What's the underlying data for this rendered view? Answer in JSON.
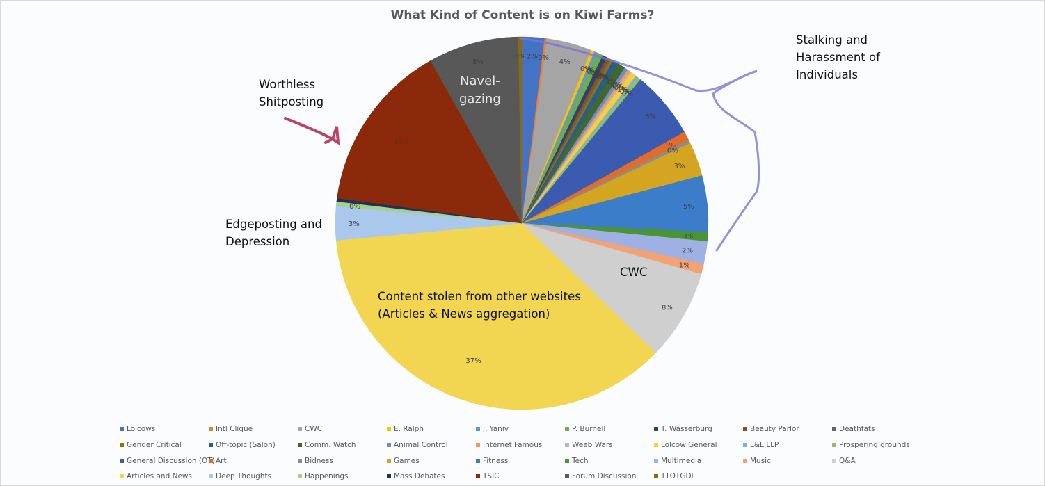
{
  "chart_data": {
    "type": "pie",
    "title": "What Kind of Content is on Kiwi Farms?",
    "legend_position": "bottom",
    "slices": [
      {
        "name": "Lolcows",
        "value": 2,
        "label": "2%",
        "color": "#4472c4"
      },
      {
        "name": "Intl Clique",
        "value": 0.2,
        "label": "0%",
        "color": "#ed7d31"
      },
      {
        "name": "CWC",
        "value": 4,
        "label": "4%",
        "color": "#a5a5a5"
      },
      {
        "name": "E. Ralph",
        "value": 0.3,
        "label": "0%",
        "color": "#ffc000"
      },
      {
        "name": "J. Yaniv",
        "value": 0.3,
        "label": "0%",
        "color": "#5b9bd5"
      },
      {
        "name": "P. Burnell",
        "value": 0.5,
        "label": "0%",
        "color": "#70ad47"
      },
      {
        "name": "T. Wasserburg",
        "value": 0.4,
        "label": "0%",
        "color": "#264478"
      },
      {
        "name": "Beauty Parlor",
        "value": 0.2,
        "label": "0%",
        "color": "#9e480e"
      },
      {
        "name": "Deathfats",
        "value": 0.2,
        "label": "0%",
        "color": "#636363"
      },
      {
        "name": "Gender Critical",
        "value": 0.2,
        "label": "0%",
        "color": "#997300"
      },
      {
        "name": "Off-topic (Salon)",
        "value": 0.5,
        "label": "1%",
        "color": "#255e91"
      },
      {
        "name": "Comm. Watch",
        "value": 0.7,
        "label": "1%",
        "color": "#43682b"
      },
      {
        "name": "Animal Control",
        "value": 0.3,
        "label": "0%",
        "color": "#698ed0"
      },
      {
        "name": "Internet Famous",
        "value": 0.2,
        "label": "0%",
        "color": "#f1975a"
      },
      {
        "name": "Weeb Wars",
        "value": 0.2,
        "label": "0%",
        "color": "#b7b7b7"
      },
      {
        "name": "Lolcow General",
        "value": 0.5,
        "label": "1%",
        "color": "#ffcd33"
      },
      {
        "name": "L&L LLP",
        "value": 0.2,
        "label": "0%",
        "color": "#7cafdd"
      },
      {
        "name": "Prospering grounds",
        "value": 0.3,
        "label": "0%",
        "color": "#8cc168"
      },
      {
        "name": "General Discussion (OT)",
        "value": 6,
        "label": "6%",
        "color": "#3a5bb0"
      },
      {
        "name": "Art",
        "value": 0.8,
        "label": "1%",
        "color": "#e36c2a"
      },
      {
        "name": "Bidness",
        "value": 0.3,
        "label": "0%",
        "color": "#8c8c8c"
      },
      {
        "name": "Games",
        "value": 3,
        "label": "3%",
        "color": "#d4a520"
      },
      {
        "name": "Fitness",
        "value": 5,
        "label": "5%",
        "color": "#3c7dc9"
      },
      {
        "name": "Tech",
        "value": 0.8,
        "label": "1%",
        "color": "#4b9434"
      },
      {
        "name": "Multimedia",
        "value": 2,
        "label": "2%",
        "color": "#9fb0e4"
      },
      {
        "name": "Music",
        "value": 0.9,
        "label": "1%",
        "color": "#f2a273"
      },
      {
        "name": "Q&A",
        "value": 8,
        "label": "8%",
        "color": "#cfcfcf"
      },
      {
        "name": "Articles and News",
        "value": 37,
        "label": "37%",
        "color": "#f2d652"
      },
      {
        "name": "Deep Thoughts",
        "value": 3,
        "label": "3%",
        "color": "#a9c8eb"
      },
      {
        "name": "Happenings",
        "value": 0.4,
        "label": "0%",
        "color": "#a6d18a"
      },
      {
        "name": "Mass Debates",
        "value": 0.3,
        "label": "0%",
        "color": "#1f2f5c"
      },
      {
        "name": "TSIC",
        "value": 15,
        "label": "15%",
        "color": "#8b2a0a"
      },
      {
        "name": "Forum Discussion",
        "value": 8,
        "label": "8%",
        "color": "#585858"
      },
      {
        "name": "TTOTGDI",
        "value": 0.3,
        "label": "0%",
        "color": "#8a6a10"
      }
    ],
    "annotations": [
      "Worthless Shitposting",
      "Navel-gazing",
      "Stalking and Harassment of Individuals",
      "Edgeposting and Depression",
      "Content stolen from other websites (Articles & News aggregation)",
      "CWC"
    ]
  },
  "annotations": {
    "shitposting": "Worthless\nShitposting",
    "navel": "Navel-\ngazing",
    "stalking": "Stalking and\nHarassment of\nIndividuals",
    "edge": "Edgeposting and\nDepression",
    "stolen": "Content stolen from other websites\n(Articles & News aggregation)",
    "cwc": "CWC"
  }
}
